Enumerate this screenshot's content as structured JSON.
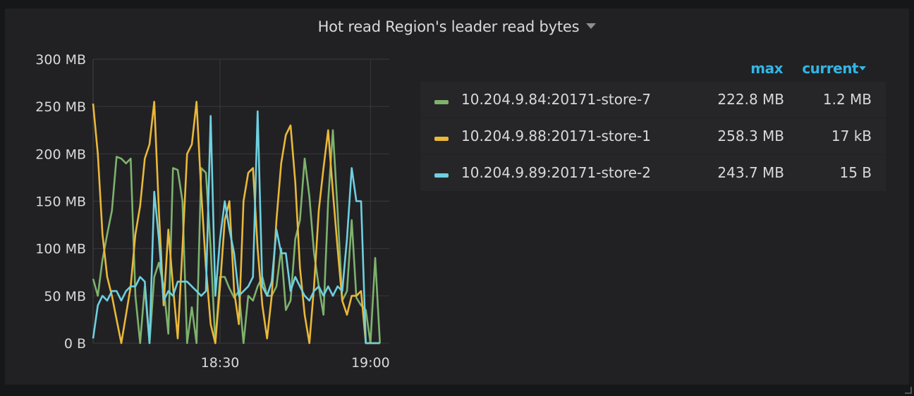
{
  "panel": {
    "title": "Hot read Region's leader read bytes"
  },
  "legend": {
    "headers": {
      "max": "max",
      "current": "current"
    },
    "rows": [
      {
        "name": "10.204.9.84:20171-store-7",
        "max": "222.8 MB",
        "current": "1.2 MB",
        "color": "#7eb26d"
      },
      {
        "name": "10.204.9.88:20171-store-1",
        "max": "258.3 MB",
        "current": "17 kB",
        "color": "#eab839"
      },
      {
        "name": "10.204.9.89:20171-store-2",
        "max": "243.7 MB",
        "current": "15 B",
        "color": "#6ed0e0"
      }
    ]
  },
  "chart_data": {
    "type": "line",
    "title": "Hot read Region's leader read bytes",
    "xlabel": "",
    "ylabel": "",
    "x_unit": "minutes",
    "x_range": [
      "18:00",
      "19:03"
    ],
    "ylim": [
      0,
      300
    ],
    "y_ticks": [
      {
        "label": "0 B",
        "value": 0
      },
      {
        "label": "50 MB",
        "value": 50
      },
      {
        "label": "100 MB",
        "value": 100
      },
      {
        "label": "150 MB",
        "value": 150
      },
      {
        "label": "200 MB",
        "value": 200
      },
      {
        "label": "250 MB",
        "value": 250
      },
      {
        "label": "300 MB",
        "value": 300
      }
    ],
    "x_ticks": [
      {
        "label": "18:30",
        "value": 27
      },
      {
        "label": "19:00",
        "value": 59
      }
    ],
    "grid": true,
    "legend_position": "right",
    "series": [
      {
        "name": "10.204.9.84:20171-store-7",
        "color": "#7eb26d",
        "x": [
          0,
          1,
          2,
          3,
          4,
          5,
          6,
          7,
          8,
          9,
          10,
          11,
          12,
          13,
          14,
          15,
          16,
          17,
          18,
          19,
          20,
          21,
          22,
          23,
          24,
          25,
          26,
          27,
          28,
          29,
          30,
          31,
          32,
          33,
          34,
          35,
          36,
          37,
          38,
          39,
          40,
          41,
          42,
          43,
          44,
          45,
          46,
          47,
          48,
          49,
          50,
          51,
          52,
          53,
          54,
          55,
          56,
          57,
          58,
          59,
          60,
          61
        ],
        "values": [
          68,
          50,
          88,
          115,
          140,
          197,
          195,
          190,
          195,
          50,
          0,
          60,
          0,
          70,
          85,
          60,
          10,
          185,
          183,
          150,
          0,
          38,
          0,
          185,
          180,
          100,
          0,
          70,
          70,
          58,
          48,
          55,
          0,
          50,
          45,
          60,
          70,
          50,
          50,
          60,
          100,
          35,
          45,
          110,
          130,
          195,
          155,
          95,
          60,
          30,
          150,
          225,
          140,
          45,
          55,
          130,
          48,
          40,
          35,
          0,
          90,
          0
        ]
      },
      {
        "name": "10.204.9.88:20171-store-1",
        "color": "#eab839",
        "x": [
          0,
          1,
          2,
          3,
          4,
          5,
          6,
          7,
          8,
          9,
          10,
          11,
          12,
          13,
          14,
          15,
          16,
          17,
          18,
          19,
          20,
          21,
          22,
          23,
          24,
          25,
          26,
          27,
          28,
          29,
          30,
          31,
          32,
          33,
          34,
          35,
          36,
          37,
          38,
          39,
          40,
          41,
          42,
          43,
          44,
          45,
          46,
          47,
          48,
          49,
          50,
          51,
          52,
          53,
          54,
          55,
          56,
          57,
          58,
          59,
          60,
          61
        ],
        "values": [
          253,
          200,
          115,
          70,
          50,
          25,
          0,
          30,
          60,
          115,
          145,
          195,
          210,
          255,
          140,
          40,
          120,
          60,
          5,
          100,
          200,
          210,
          255,
          160,
          80,
          20,
          0,
          60,
          130,
          150,
          55,
          20,
          150,
          180,
          185,
          100,
          40,
          5,
          50,
          130,
          190,
          220,
          230,
          170,
          80,
          30,
          0,
          60,
          140,
          185,
          225,
          160,
          100,
          45,
          30,
          50,
          50,
          55,
          0,
          0,
          0,
          0
        ]
      },
      {
        "name": "10.204.9.89:20171-store-2",
        "color": "#6ed0e0",
        "x": [
          0,
          1,
          2,
          3,
          4,
          5,
          6,
          7,
          8,
          9,
          10,
          11,
          12,
          13,
          14,
          15,
          16,
          17,
          18,
          19,
          20,
          21,
          22,
          23,
          24,
          25,
          26,
          27,
          28,
          29,
          30,
          31,
          32,
          33,
          34,
          35,
          36,
          37,
          38,
          39,
          40,
          41,
          42,
          43,
          44,
          45,
          46,
          47,
          48,
          49,
          50,
          51,
          52,
          53,
          54,
          55,
          56,
          57,
          58,
          59,
          60,
          61
        ],
        "values": [
          5,
          40,
          50,
          45,
          55,
          55,
          45,
          55,
          60,
          60,
          70,
          65,
          0,
          160,
          110,
          45,
          55,
          50,
          65,
          65,
          65,
          60,
          55,
          50,
          55,
          240,
          50,
          110,
          150,
          120,
          95,
          50,
          55,
          60,
          70,
          245,
          60,
          50,
          65,
          120,
          95,
          95,
          55,
          70,
          60,
          50,
          45,
          55,
          60,
          50,
          60,
          50,
          60,
          55,
          110,
          185,
          150,
          150,
          0,
          0,
          0,
          0
        ]
      }
    ]
  }
}
